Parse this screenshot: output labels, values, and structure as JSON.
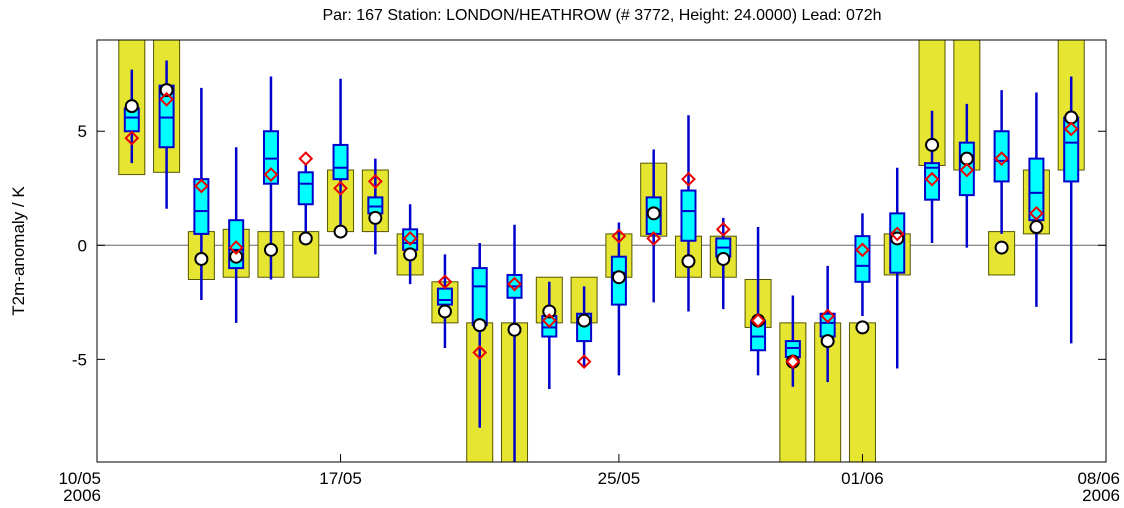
{
  "chart_data": {
    "type": "boxplot",
    "title": "Par: 167 Station:  LONDON/HEATHROW  (# 3772, Height: 24.0000) Lead: 072h",
    "y_label": "T2m-anomaly / K",
    "x": [
      "11/05",
      "12/05",
      "13/05",
      "14/05",
      "15/05",
      "16/05",
      "17/05",
      "18/05",
      "19/05",
      "20/05",
      "21/05",
      "22/05",
      "23/05",
      "24/05",
      "25/05",
      "26/05",
      "27/05",
      "28/05",
      "29/05",
      "30/05",
      "31/05",
      "01/06",
      "02/06",
      "03/06",
      "04/06",
      "05/06",
      "06/06",
      "07/06"
    ],
    "xlim": [
      "10/05",
      "08/06"
    ],
    "xticks": [
      {
        "value": "10/05",
        "label": "10/05\n2006"
      },
      "17/05",
      "25/05",
      "01/06",
      {
        "value": "08/06",
        "label": "08/06\n2006"
      }
    ],
    "ylim": [
      -9.5,
      9
    ],
    "yticks": [
      -5,
      0,
      5
    ],
    "zero_line": true,
    "band": {
      "color": "#e6e632",
      "edge": "#555500",
      "low": [
        3.1,
        3.2,
        -1.5,
        -1.4,
        -1.4,
        -1.4,
        0.6,
        0.6,
        -1.3,
        -3.4,
        -10,
        -10,
        -3.4,
        -3.4,
        -1.4,
        0.4,
        -1.4,
        -1.4,
        -3.6,
        -10,
        -10,
        -10,
        -1.3,
        3.5,
        3.3,
        -1.3,
        0.5,
        3.3
      ],
      "high": [
        10,
        10,
        0.6,
        0.7,
        0.6,
        0.6,
        3.3,
        3.3,
        0.5,
        -1.6,
        -3.4,
        -3.4,
        -1.4,
        -1.4,
        0.5,
        3.6,
        0.4,
        0.4,
        -1.5,
        -3.4,
        -3.4,
        -3.4,
        0.5,
        10,
        10,
        0.6,
        3.3,
        10
      ]
    },
    "box": {
      "color": "#00ffff",
      "edge": "#0000cc",
      "low": [
        3.6,
        1.6,
        -2.4,
        -3.4,
        -1.5,
        0.3,
        0.6,
        -0.4,
        -1.7,
        -4.5,
        -8,
        -10,
        -6.3,
        -5.3,
        -5.7,
        -2.5,
        -2.9,
        -2.8,
        -5.7,
        -6.2,
        -6.0,
        -3.1,
        -5.4,
        0.1,
        -0.1,
        0.5,
        -2.7,
        -4.3
      ],
      "q1": [
        5.0,
        4.3,
        0.5,
        -1.0,
        2.7,
        1.8,
        2.9,
        1.4,
        -0.2,
        -2.6,
        -3.5,
        -2.3,
        -4.0,
        -4.2,
        -2.6,
        0.5,
        0.2,
        -0.5,
        -4.6,
        -4.9,
        -4.0,
        -1.6,
        -1.2,
        2.0,
        2.2,
        2.8,
        1.1,
        2.8
      ],
      "median": [
        5.6,
        5.6,
        1.5,
        -0.2,
        3.8,
        2.7,
        3.4,
        1.7,
        0.1,
        -2.4,
        -1.8,
        -1.8,
        -3.6,
        -3.3,
        -1.2,
        1.3,
        1.5,
        -0.1,
        -4.0,
        -4.5,
        -3.4,
        -0.9,
        0.2,
        3.4,
        3.9,
        3.7,
        2.3,
        4.5
      ],
      "q3": [
        6.0,
        7.0,
        2.9,
        1.1,
        5.0,
        3.2,
        4.4,
        2.1,
        0.7,
        -1.9,
        -1.0,
        -1.3,
        -3.1,
        -3.0,
        -0.5,
        2.1,
        2.4,
        0.3,
        -3.3,
        -4.2,
        -3.0,
        0.4,
        1.4,
        3.6,
        4.5,
        5.0,
        3.8,
        5.6
      ],
      "high": [
        7.7,
        8.1,
        6.9,
        4.3,
        7.4,
        3.6,
        7.3,
        3.8,
        1.8,
        -0.4,
        0.1,
        0.9,
        -1.6,
        -1.8,
        1.0,
        4.2,
        5.7,
        1.2,
        0.8,
        -2.2,
        -0.9,
        1.4,
        3.4,
        5.9,
        6.2,
        6.8,
        6.7,
        7.4
      ]
    },
    "markers": [
      {
        "shape": "circle",
        "color": "#000000",
        "values": [
          6.1,
          6.8,
          -0.6,
          -0.5,
          -0.2,
          0.3,
          0.6,
          1.2,
          -0.4,
          -2.9,
          -3.5,
          -3.7,
          -2.9,
          -3.3,
          -1.4,
          1.4,
          -0.7,
          -0.6,
          -3.3,
          -5.1,
          -4.2,
          -3.6,
          0.3,
          4.4,
          3.8,
          -0.1,
          0.8,
          5.6
        ]
      },
      {
        "shape": "diamond",
        "color": "#ee0000",
        "values": [
          4.7,
          6.4,
          2.6,
          -0.1,
          3.1,
          3.8,
          2.5,
          2.8,
          0.3,
          -1.6,
          -4.7,
          -1.7,
          -3.3,
          -5.1,
          0.4,
          0.3,
          2.9,
          0.7,
          -3.3,
          -5.1,
          -3.1,
          -0.2,
          0.5,
          2.9,
          3.3,
          3.8,
          1.4,
          5.1
        ]
      }
    ]
  }
}
